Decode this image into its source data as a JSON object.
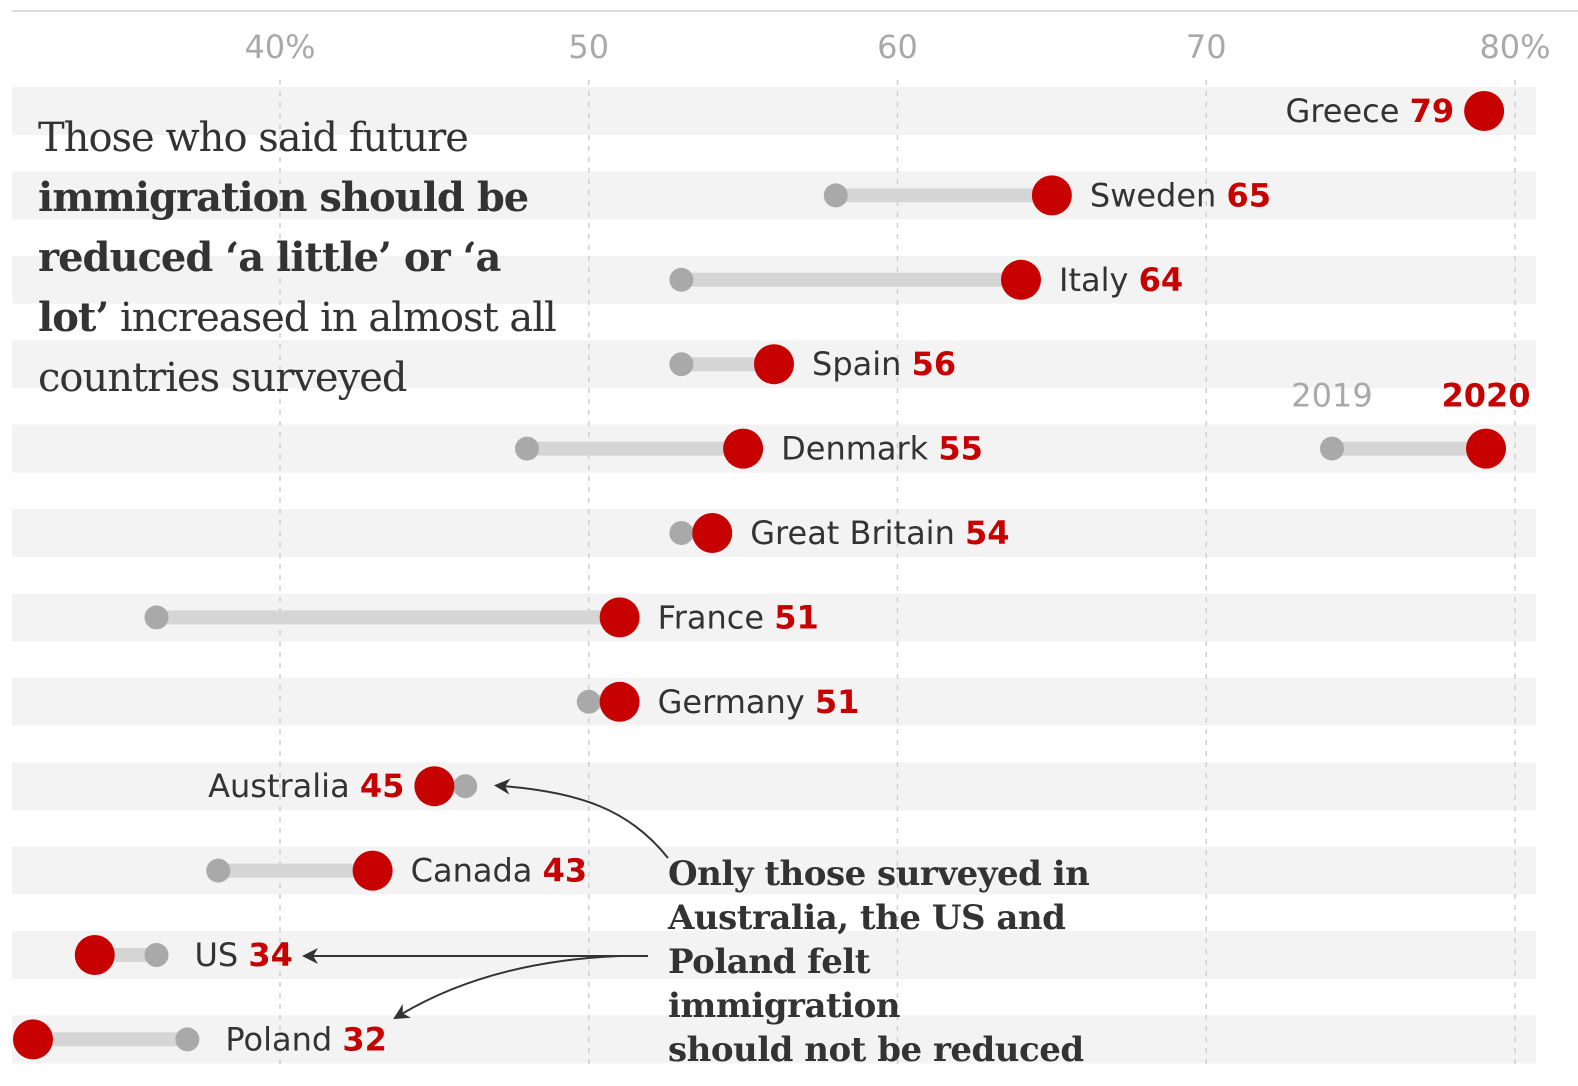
{
  "chart_data": {
    "type": "dumbbell",
    "title": "Those who said future immigration should be reduced ‘a little’ or ‘a lot’ increased in almost all countries surveyed",
    "title_parts": [
      {
        "text": "Those who said future ",
        "bold": false
      },
      {
        "text": "immigration should be reduced ‘a little’ or ‘a lot’",
        "bold": true
      },
      {
        "text": " increased in almost all countries surveyed",
        "bold": false
      }
    ],
    "xlabel": "",
    "ylabel": "",
    "xlim": [
      33,
      81
    ],
    "x_ticks": [
      40,
      50,
      60,
      70,
      80
    ],
    "x_tick_labels": [
      "40%",
      "50",
      "60",
      "70",
      "80%"
    ],
    "grid": "vertical dashed",
    "legend": {
      "position": "right",
      "entries": [
        {
          "label": "2019",
          "color": "#a9a9a9"
        },
        {
          "label": "2020",
          "color": "#c70000"
        }
      ]
    },
    "series": [
      {
        "name": "2019",
        "color": "#a9a9a9"
      },
      {
        "name": "2020",
        "color": "#c70000"
      }
    ],
    "categories": [
      "Greece",
      "Sweden",
      "Italy",
      "Spain",
      "Denmark",
      "Great Britain",
      "France",
      "Germany",
      "Australia",
      "Canada",
      "US",
      "Poland"
    ],
    "rows": [
      {
        "country": "Greece",
        "v2019": null,
        "v2020": 79,
        "label_side": "left"
      },
      {
        "country": "Sweden",
        "v2019": 58,
        "v2020": 65,
        "label_side": "right"
      },
      {
        "country": "Italy",
        "v2019": 53,
        "v2020": 64,
        "label_side": "right"
      },
      {
        "country": "Spain",
        "v2019": 53,
        "v2020": 56,
        "label_side": "right"
      },
      {
        "country": "Denmark",
        "v2019": 48,
        "v2020": 55,
        "label_side": "right"
      },
      {
        "country": "Great Britain",
        "v2019": 53,
        "v2020": 54,
        "label_side": "right"
      },
      {
        "country": "France",
        "v2019": 36,
        "v2020": 51,
        "label_side": "right"
      },
      {
        "country": "Germany",
        "v2019": 50,
        "v2020": 51,
        "label_side": "right"
      },
      {
        "country": "Australia",
        "v2019": 46,
        "v2020": 45,
        "label_side": "left"
      },
      {
        "country": "Canada",
        "v2019": 38,
        "v2020": 43,
        "label_side": "right"
      },
      {
        "country": "US",
        "v2019": 36,
        "v2020": 34,
        "label_side": "right"
      },
      {
        "country": "Poland",
        "v2019": 37,
        "v2020": 32,
        "label_side": "right"
      }
    ],
    "annotations": [
      {
        "text": "Only those surveyed in Australia, the US and Poland felt immigration should not be reduced",
        "points_to": [
          "Australia",
          "US",
          "Poland"
        ]
      }
    ]
  },
  "annotation_lines": [
    "Only those surveyed in",
    "Australia, the US and",
    "Poland felt immigration",
    "should not be reduced"
  ]
}
